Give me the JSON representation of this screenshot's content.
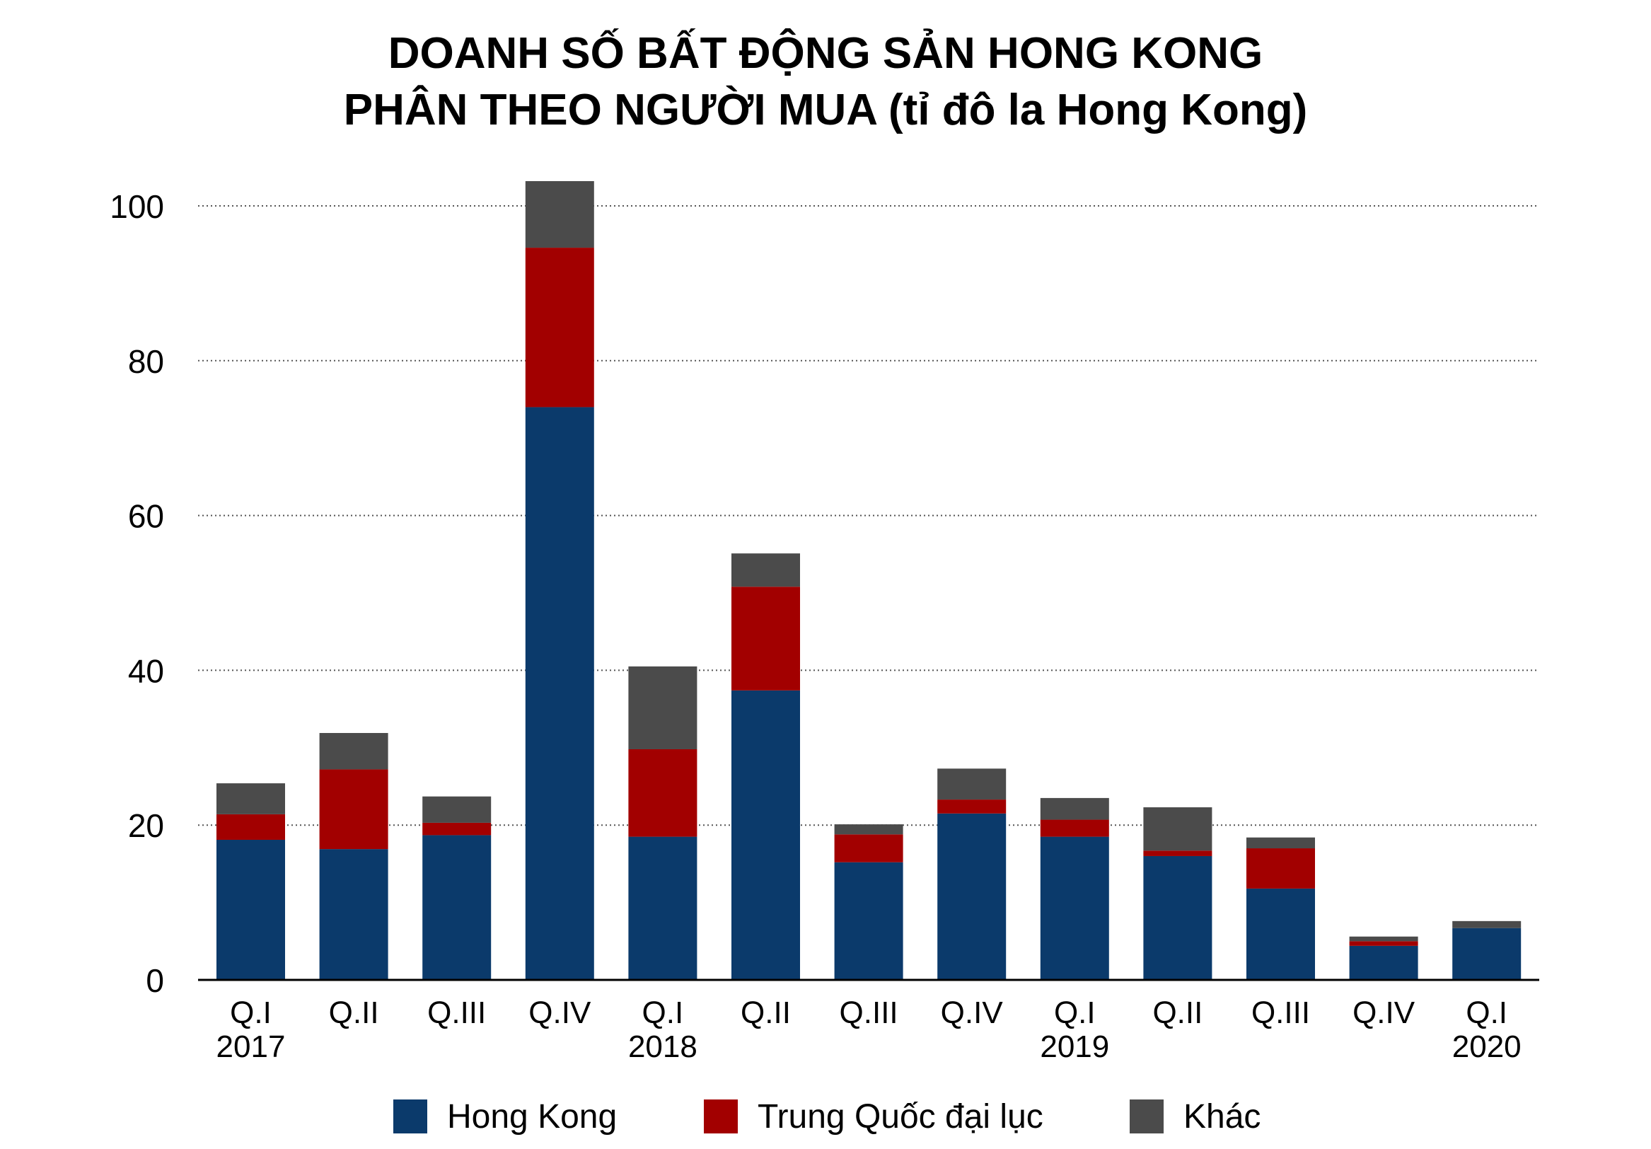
{
  "chart_data": {
    "type": "bar",
    "stacked": true,
    "title": "DOANH SỐ BẤT ĐỘNG SẢN HONG KONG",
    "subtitle": "PHÂN THEO NGƯỜI MUA (tỉ đô la Hong Kong)",
    "categories": [
      "Q.I",
      "Q.II",
      "Q.III",
      "Q.IV",
      "Q.I",
      "Q.II",
      "Q.III",
      "Q.IV",
      "Q.I",
      "Q.II",
      "Q.III",
      "Q.IV",
      "Q.I"
    ],
    "year_labels": [
      "2017",
      "",
      "",
      "",
      "2018",
      "",
      "",
      "",
      "2019",
      "",
      "",
      "",
      "2020"
    ],
    "series": [
      {
        "name": "Hong Kong",
        "color": "#0b3a6b",
        "values": [
          18.1,
          16.9,
          18.7,
          74.0,
          18.5,
          37.4,
          15.2,
          21.5,
          18.5,
          16.0,
          11.8,
          4.4,
          6.7
        ]
      },
      {
        "name": "Trung Quốc đại lục",
        "color": "#a20000",
        "values": [
          3.3,
          10.3,
          1.6,
          20.6,
          11.3,
          13.4,
          3.6,
          1.8,
          2.2,
          0.7,
          5.2,
          0.6,
          0.0
        ]
      },
      {
        "name": "Khác",
        "color": "#4b4b4b",
        "values": [
          4.0,
          4.7,
          3.4,
          8.6,
          10.7,
          4.3,
          1.3,
          4.0,
          2.8,
          5.6,
          1.4,
          0.6,
          0.9
        ]
      }
    ],
    "yticks": [
      0,
      20,
      40,
      60,
      80,
      100
    ],
    "ylim": [
      0,
      104
    ],
    "grid": true,
    "legend_position": "bottom"
  }
}
